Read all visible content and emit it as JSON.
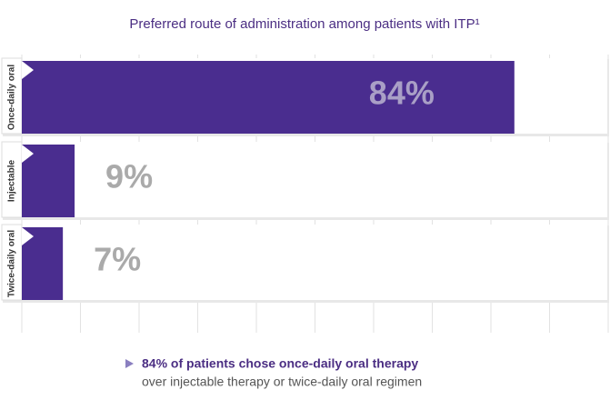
{
  "chart_data": {
    "type": "bar",
    "orientation": "horizontal",
    "title": "Preferred route of administration among patients with ITP¹",
    "categories": [
      "Once-daily oral",
      "Injectable",
      "Twice-daily oral"
    ],
    "values": [
      84,
      9,
      7
    ],
    "value_labels": [
      "84%",
      "9%",
      "7%"
    ],
    "color": "#4a2d8f",
    "xlim": [
      0,
      100
    ],
    "xticks": [
      0,
      10,
      20,
      30,
      40,
      50,
      60,
      70,
      80,
      90,
      100
    ],
    "grid": true,
    "footnote": {
      "bold": "84% of patients chose once-daily oral therapy",
      "text": "over injectable therapy or twice-daily oral regimen"
    }
  }
}
